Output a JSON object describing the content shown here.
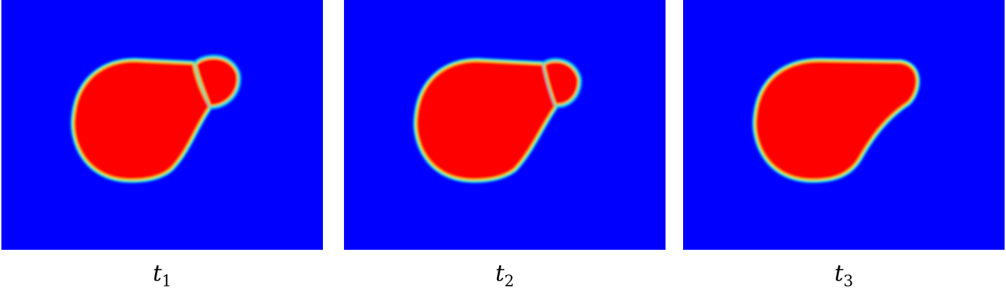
{
  "panels": [
    {
      "label": "t",
      "subscript": "1"
    },
    {
      "label": "t",
      "subscript": "2"
    },
    {
      "label": "t",
      "subscript": "3"
    }
  ]
}
